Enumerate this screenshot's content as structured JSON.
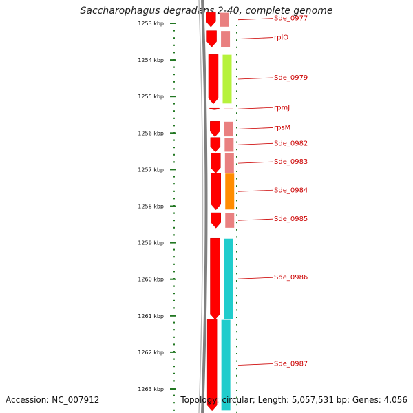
{
  "title": "Saccharophagus degradans 2-40, complete genome",
  "footer": {
    "accession": "Accession: NC_007912",
    "topology": "Topology: circular; Length: 5,057,531 bp; Genes: 4,056"
  },
  "colors": {
    "cds": "#ff0000",
    "track_pink": "#e98080",
    "green": "#b6f23c",
    "orange": "#ff8c00",
    "cyan": "#20cccc",
    "tick": "#227722",
    "label": "#cc0000",
    "backbone": "#808080"
  },
  "scale": {
    "unit": "kbp",
    "ticks": [
      {
        "kbp": 1253,
        "label": "1253 kbp"
      },
      {
        "kbp": 1254,
        "label": "1254 kbp"
      },
      {
        "kbp": 1255,
        "label": "1255 kbp"
      },
      {
        "kbp": 1256,
        "label": "1256 kbp"
      },
      {
        "kbp": 1257,
        "label": "1257 kbp"
      },
      {
        "kbp": 1258,
        "label": "1258 kbp"
      },
      {
        "kbp": 1259,
        "label": "1259 kbp"
      },
      {
        "kbp": 1260,
        "label": "1260 kbp"
      },
      {
        "kbp": 1261,
        "label": "1261 kbp"
      },
      {
        "kbp": 1262,
        "label": "1262 kbp"
      },
      {
        "kbp": 1263,
        "label": "1263 kbp"
      }
    ]
  },
  "genes": [
    {
      "name": "Sde_0977",
      "start": 1252.7,
      "end": 1253.1,
      "color": "pink"
    },
    {
      "name": "rplO",
      "start": 1253.2,
      "end": 1253.65,
      "color": "pink"
    },
    {
      "name": "Sde_0979",
      "start": 1253.85,
      "end": 1255.2,
      "color": "green"
    },
    {
      "name": "rpmJ",
      "start": 1255.32,
      "end": 1255.36,
      "color": "pink"
    },
    {
      "name": "rpsM",
      "start": 1255.68,
      "end": 1256.1,
      "color": "pink"
    },
    {
      "name": "Sde_0982",
      "start": 1256.12,
      "end": 1256.52,
      "color": "pink"
    },
    {
      "name": "Sde_0983",
      "start": 1256.55,
      "end": 1257.1,
      "color": "pink"
    },
    {
      "name": "Sde_0984",
      "start": 1257.1,
      "end": 1258.1,
      "color": "orange"
    },
    {
      "name": "Sde_0985",
      "start": 1258.18,
      "end": 1258.6,
      "color": "pink"
    },
    {
      "name": "Sde_0986",
      "start": 1258.88,
      "end": 1261.1,
      "color": "cyan"
    },
    {
      "name": "Sde_0987",
      "start": 1261.1,
      "end": 1263.6,
      "color": "cyan"
    }
  ]
}
